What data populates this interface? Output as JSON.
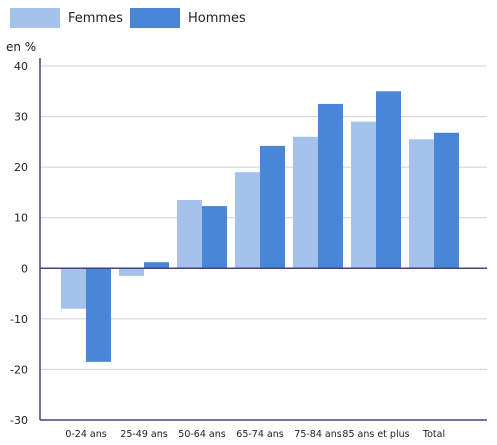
{
  "legend": {
    "femmes": "Femmes",
    "hommes": "Hommes"
  },
  "colors": {
    "femmes": "#a4c2ea",
    "hommes": "#4a86d8",
    "axis": "#4a3f86",
    "grid": "#d0d0d0"
  },
  "chart_data": {
    "type": "bar",
    "ylabel": "en %",
    "ylim": [
      -30,
      40
    ],
    "yticks": [
      -30,
      -20,
      -10,
      0,
      10,
      20,
      30,
      40
    ],
    "categories": [
      "0-24 ans",
      "25-49 ans",
      "50-64 ans",
      "65-74 ans",
      "75-84 ans",
      "85 ans et plus",
      "Total"
    ],
    "series": [
      {
        "name": "Femmes",
        "values": [
          -8,
          -1.5,
          13.5,
          19,
          26,
          29,
          25.5
        ]
      },
      {
        "name": "Hommes",
        "values": [
          -18.5,
          1.2,
          12.3,
          24.2,
          32.5,
          35,
          26.8
        ]
      }
    ],
    "grid": true,
    "legend_position": "top-left"
  }
}
